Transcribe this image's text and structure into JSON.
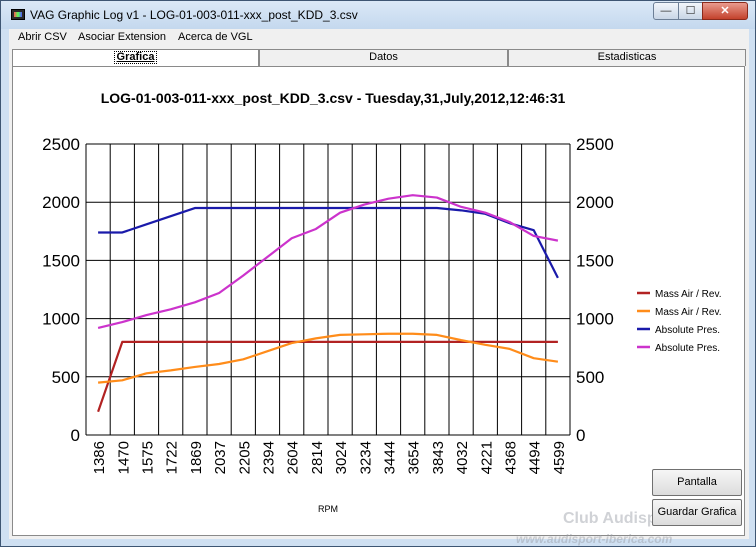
{
  "window": {
    "title": "VAG Graphic Log  v1 -  LOG-01-003-011-xxx_post_KDD_3.csv",
    "controls": {
      "minimize": "—",
      "maximize": "☐",
      "close": "✕"
    }
  },
  "menu": {
    "items": [
      "Abrir CSV",
      "Asociar Extension",
      "Acerca de VGL"
    ]
  },
  "tabs": [
    {
      "label": "Grafica",
      "active": true
    },
    {
      "label": "Datos",
      "active": false
    },
    {
      "label": "Estadisticas",
      "active": false
    }
  ],
  "buttons": {
    "fullscreen": "Pantalla Completa",
    "save": "Guardar Grafica"
  },
  "watermark": {
    "line1": "Club Audisport Iberica",
    "line2": "www.audisport-iberica.com"
  },
  "chart_data": {
    "type": "line",
    "title": "LOG-01-003-011-xxx_post_KDD_3.csv - Tuesday,31,July,2012,12:46:31",
    "xlabel": "RPM",
    "ylabel": "",
    "categories": [
      "1386",
      "1470",
      "1575",
      "1722",
      "1869",
      "2037",
      "2205",
      "2394",
      "2604",
      "2814",
      "3024",
      "3234",
      "3444",
      "3654",
      "3843",
      "4032",
      "4221",
      "4368",
      "4494",
      "4599"
    ],
    "ylim": [
      0,
      2500
    ],
    "yticks": [
      0,
      500,
      1000,
      1500,
      2000,
      2500
    ],
    "grid": true,
    "legend_position": "right",
    "series": [
      {
        "name": "Mass Air / Rev.",
        "color": "#b22222",
        "values": [
          200,
          800,
          800,
          800,
          800,
          800,
          800,
          800,
          800,
          800,
          800,
          800,
          800,
          800,
          800,
          800,
          800,
          800,
          800,
          800
        ]
      },
      {
        "name": "Mass Air / Rev.",
        "color": "#ff8c1a",
        "values": [
          450,
          470,
          530,
          555,
          585,
          610,
          650,
          720,
          790,
          830,
          860,
          865,
          870,
          870,
          860,
          815,
          775,
          740,
          660,
          630
        ]
      },
      {
        "name": "Absolute Pres.",
        "color": "#1a1aaa",
        "values": [
          1740,
          1740,
          1810,
          1880,
          1950,
          1950,
          1950,
          1950,
          1950,
          1950,
          1950,
          1950,
          1950,
          1950,
          1950,
          1930,
          1900,
          1820,
          1760,
          1350
        ]
      },
      {
        "name": "Absolute Pres.",
        "color": "#cc33cc",
        "values": [
          920,
          970,
          1030,
          1080,
          1140,
          1220,
          1370,
          1530,
          1690,
          1770,
          1910,
          1980,
          2030,
          2060,
          2040,
          1960,
          1910,
          1830,
          1710,
          1670
        ]
      }
    ]
  }
}
